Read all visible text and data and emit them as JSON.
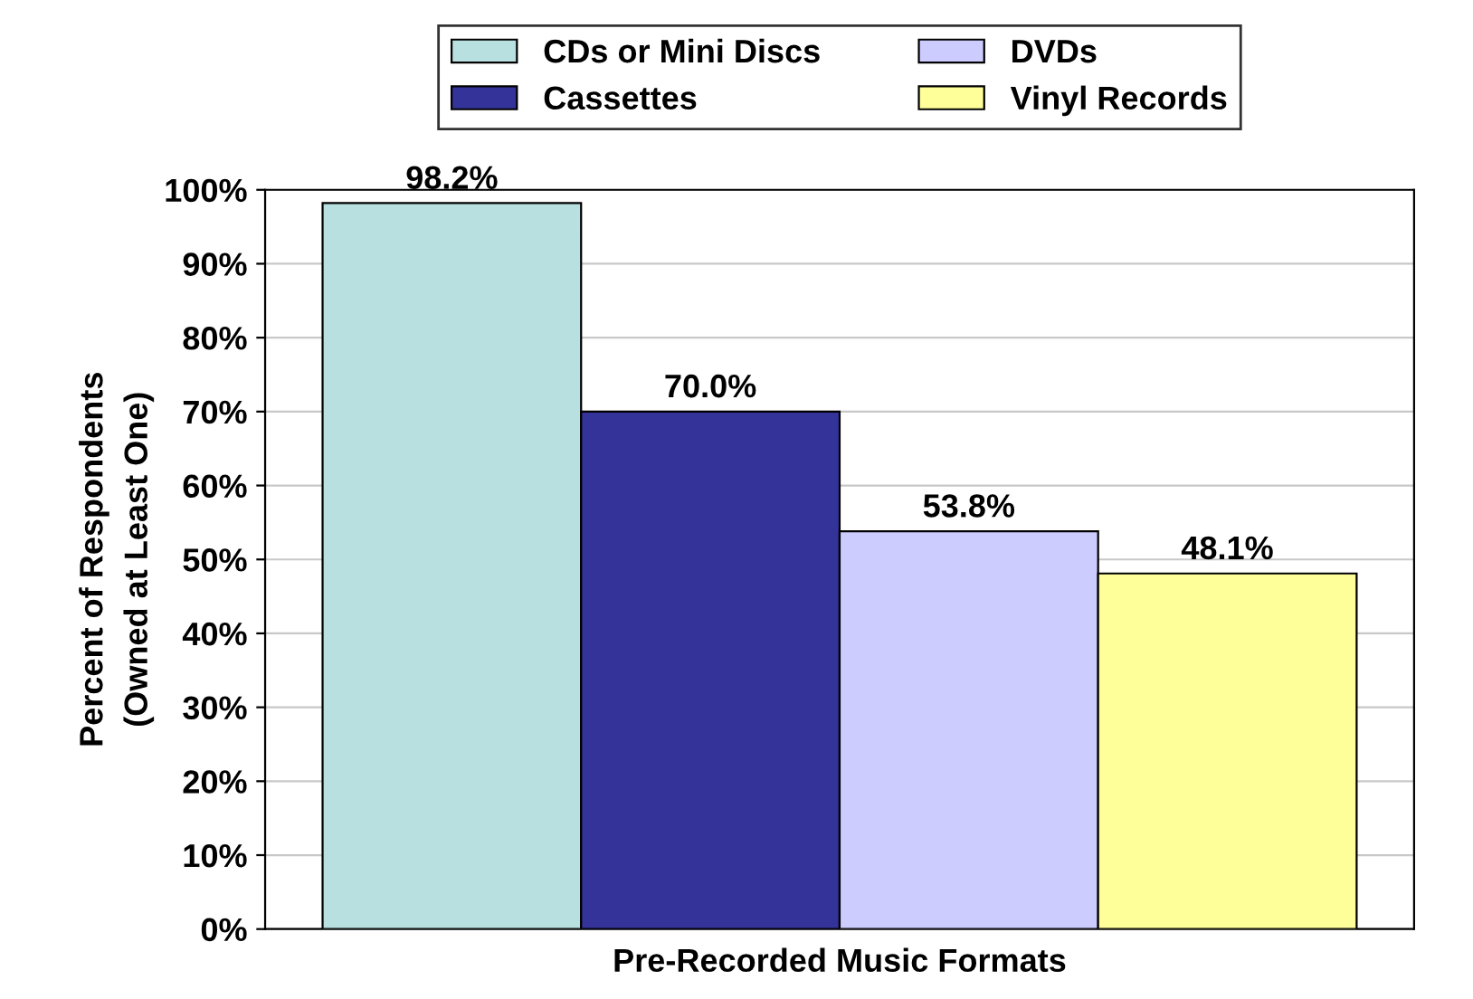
{
  "chart_data": {
    "type": "bar",
    "xlabel": "Pre-Recorded Music Formats",
    "ylabel": "Percent of Respondents\n(Owned at Least One)",
    "categories": [
      null
    ],
    "series": [
      {
        "name": "CDs or Mini Discs",
        "color": "#b8e0e0",
        "values": [
          98.2
        ],
        "value_labels": [
          "98.2%"
        ]
      },
      {
        "name": "Cassettes",
        "color": "#333399",
        "values": [
          70.0
        ],
        "value_labels": [
          "70.0%"
        ]
      },
      {
        "name": "DVDs",
        "color": "#ccccff",
        "values": [
          53.8
        ],
        "value_labels": [
          "53.8%"
        ]
      },
      {
        "name": "Vinyl Records",
        "color": "#ffff99",
        "values": [
          48.1
        ],
        "value_labels": [
          "48.1%"
        ]
      }
    ],
    "ylim": [
      0,
      100
    ],
    "yticks": [
      {
        "value": 0,
        "label": "0%"
      },
      {
        "value": 10,
        "label": "10%"
      },
      {
        "value": 20,
        "label": "20%"
      },
      {
        "value": 30,
        "label": "30%"
      },
      {
        "value": 40,
        "label": "40%"
      },
      {
        "value": 50,
        "label": "50%"
      },
      {
        "value": 60,
        "label": "60%"
      },
      {
        "value": 70,
        "label": "70%"
      },
      {
        "value": 80,
        "label": "80%"
      },
      {
        "value": 90,
        "label": "90%"
      },
      {
        "value": 100,
        "label": "100%"
      }
    ],
    "grid": "y",
    "legend": "top"
  }
}
